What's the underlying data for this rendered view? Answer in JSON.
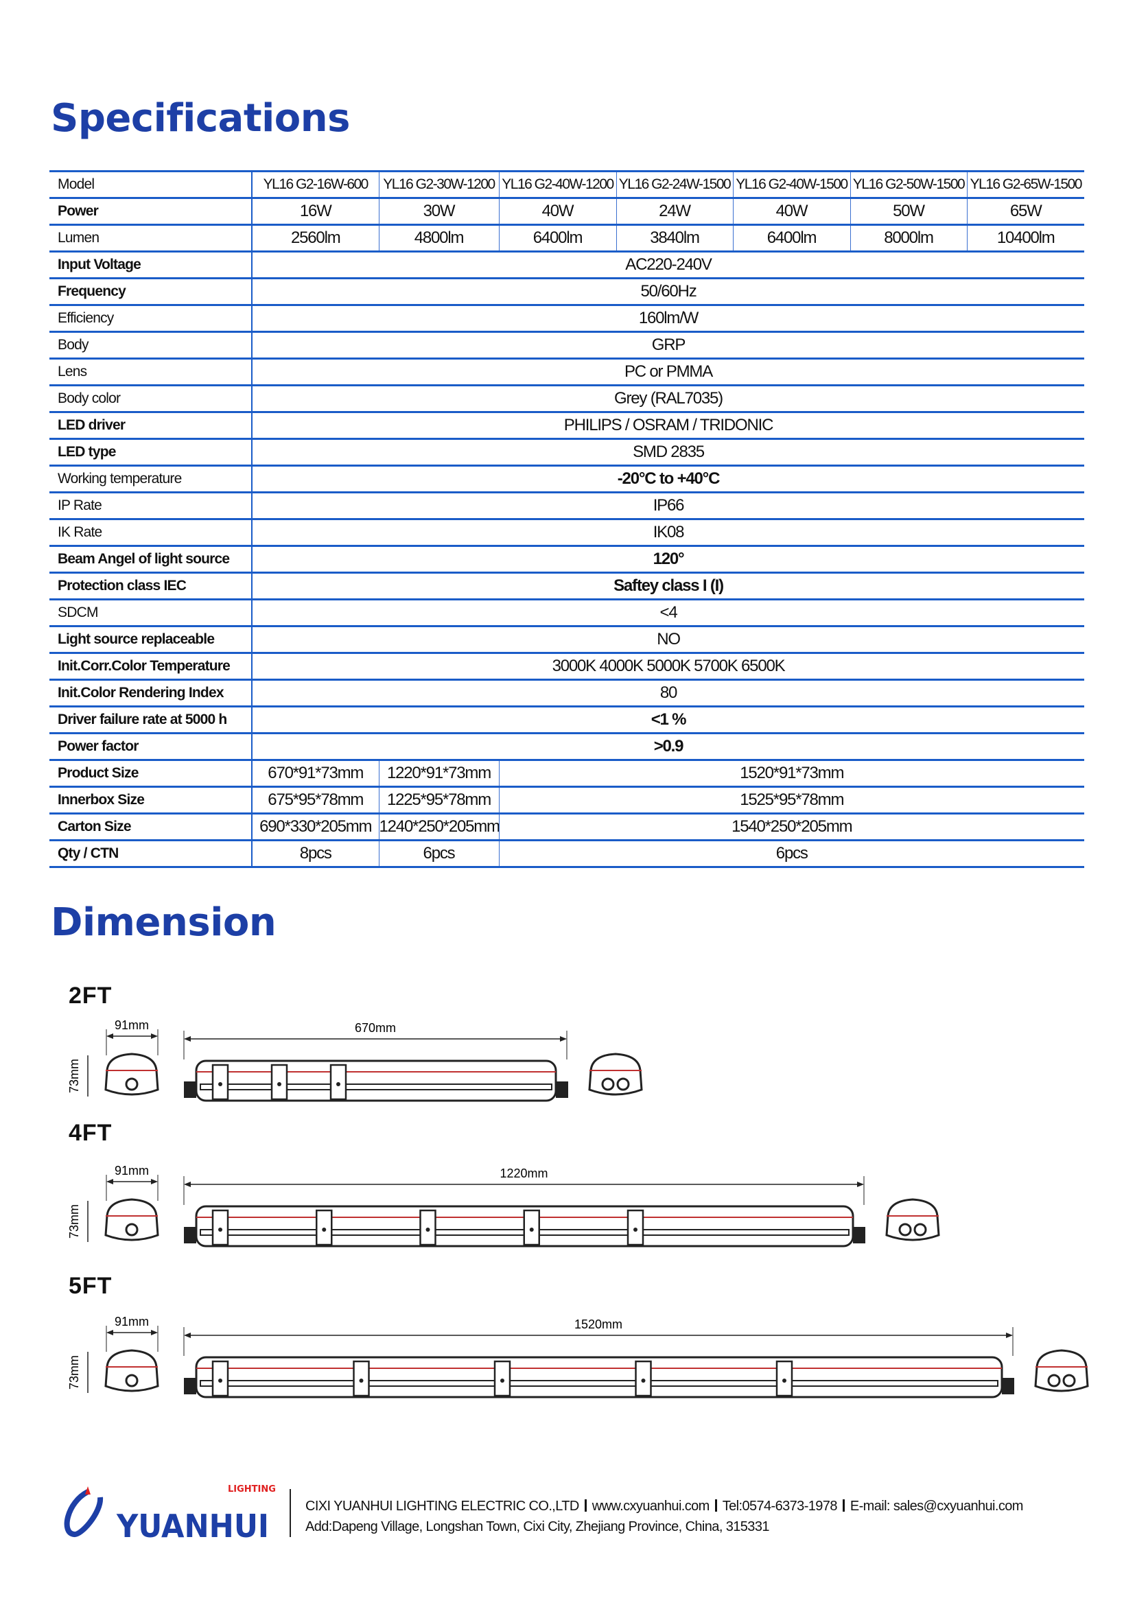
{
  "specifications": {
    "title": "Specifications",
    "rows": [
      {
        "label": "Model",
        "cells": [
          "YL16 G2-16W-600",
          "YL16 G2-30W-1200",
          "YL16 G2-40W-1200",
          "YL16 G2-24W-1500",
          "YL16 G2-40W-1500",
          "YL16 G2-50W-1500",
          "YL16 G2-65W-1500"
        ]
      },
      {
        "label": "Power",
        "cells": [
          "16W",
          "30W",
          "40W",
          "24W",
          "40W",
          "50W",
          "65W"
        ]
      },
      {
        "label": "Lumen",
        "cells": [
          "2560lm",
          "4800lm",
          "6400lm",
          "3840lm",
          "6400lm",
          "8000lm",
          "10400lm"
        ]
      },
      {
        "label": "Input Voltage",
        "value": "AC220-240V"
      },
      {
        "label": "Frequency",
        "value": "50/60Hz"
      },
      {
        "label": "Efficiency",
        "value": "160lm/W"
      },
      {
        "label": "Body",
        "value": "GRP"
      },
      {
        "label": "Lens",
        "value": "PC or PMMA"
      },
      {
        "label": "Body color",
        "value": "Grey (RAL7035)"
      },
      {
        "label": "LED driver",
        "value": "PHILIPS / OSRAM / TRIDONIC"
      },
      {
        "label": "LED type",
        "value": "SMD 2835"
      },
      {
        "label": "Working temperature",
        "value": "-20°C to +40°C"
      },
      {
        "label": "IP Rate",
        "value": "IP66"
      },
      {
        "label": "IK Rate",
        "value": "IK08"
      },
      {
        "label": "Beam Angel of light source",
        "value": "120°"
      },
      {
        "label": "Protection class IEC",
        "value": "Saftey class I (I)"
      },
      {
        "label": "SDCM",
        "value": "<4"
      },
      {
        "label": "Light source replaceable",
        "value": "NO"
      },
      {
        "label": "Init.Corr.Color Temperature",
        "value": "3000K 4000K 5000K 5700K 6500K"
      },
      {
        "label": "Init.Color Rendering Index",
        "value": "80"
      },
      {
        "label": "Driver failure rate at 5000 h",
        "value": "<1 %"
      },
      {
        "label": "Power factor",
        "value": ">0.9"
      },
      {
        "label": "Product Size",
        "groups": [
          "670*91*73mm",
          "1220*91*73mm",
          "1520*91*73mm"
        ]
      },
      {
        "label": "Innerbox Size",
        "groups": [
          "675*95*78mm",
          "1225*95*78mm",
          "1525*95*78mm"
        ]
      },
      {
        "label": "Carton Size",
        "groups": [
          "690*330*205mm",
          "1240*250*205mm",
          "1540*250*205mm"
        ]
      },
      {
        "label": "Qty / CTN",
        "groups": [
          "8pcs",
          "6pcs",
          "6pcs"
        ]
      }
    ]
  },
  "dimension": {
    "title": "Dimension",
    "variants": [
      {
        "name": "2FT",
        "width": "91mm",
        "height": "73mm",
        "length": "670mm"
      },
      {
        "name": "4FT",
        "width": "91mm",
        "height": "73mm",
        "length": "1220mm"
      },
      {
        "name": "5FT",
        "width": "91mm",
        "height": "73mm",
        "length": "1520mm"
      }
    ]
  },
  "footer": {
    "logo_text": "YUANHUI",
    "logo_subtext": "LIGHTING",
    "company": "CIXI YUANHUI LIGHTING ELECTRIC CO.,LTD",
    "website": "www.cxyuanhui.com",
    "tel": "Tel:0574-6373-1978",
    "email": "E-mail: sales@cxyuanhui.com",
    "address": "Add:Dapeng Village, Longshan Town, Cixi City, Zhejiang Province, China, 315331"
  },
  "colors": {
    "title": "#1d3fa6",
    "rule": "#1a5cc8",
    "drawing": "#222222",
    "logo": "#1d3fa6",
    "logo_accent": "#e02020"
  }
}
